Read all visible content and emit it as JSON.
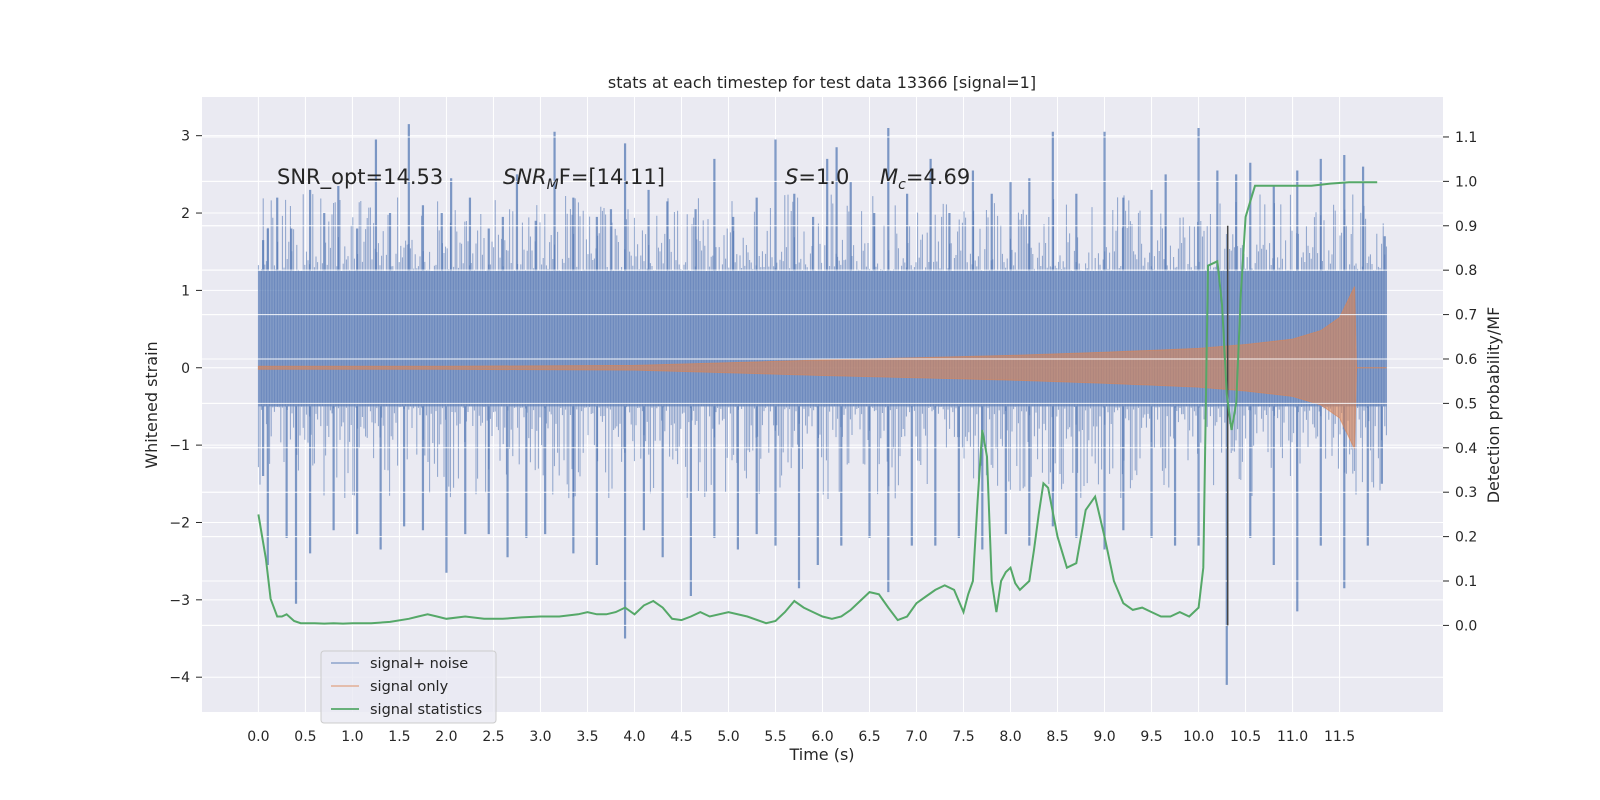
{
  "chart_data": {
    "type": "line",
    "title": "stats at each timestep for test data 13366 [signal=1]",
    "xlabel": "Time (s)",
    "ylabel_left": "Whitened strain",
    "ylabel_right": "Detection probability/MF",
    "xlim": [
      -0.6,
      12.6
    ],
    "ylim_left": [
      -4.45,
      3.5
    ],
    "ylim_right": [
      -0.195,
      1.19
    ],
    "grid": true,
    "x_ticks": [
      "0.0",
      "0.5",
      "1.0",
      "1.5",
      "2.0",
      "2.5",
      "3.0",
      "3.5",
      "4.0",
      "4.5",
      "5.0",
      "5.5",
      "6.0",
      "6.5",
      "7.0",
      "7.5",
      "8.0",
      "8.5",
      "9.0",
      "9.5",
      "10.0",
      "10.5",
      "11.0",
      "11.5"
    ],
    "y_left_ticks": [
      "3",
      "2",
      "1",
      "0",
      "−1",
      "−2",
      "−3",
      "−4"
    ],
    "y_right_ticks": [
      "1.1",
      "1.0",
      "0.9",
      "0.8",
      "0.7",
      "0.6",
      "0.5",
      "0.4",
      "0.3",
      "0.2",
      "0.1",
      "0.0"
    ],
    "annotations": {
      "snr_opt": "SNR_opt=14.53",
      "snr_mf_main": "SNR",
      "snr_mf_sub": "M",
      "snr_mf_rest": "F=[14.11]",
      "s_main": "S",
      "s_rest": "=1.0",
      "mc_main": "M",
      "mc_sub": "c",
      "mc_rest": "=4.69"
    },
    "marker_line_x": 10.31,
    "legend": {
      "placement": "lower-left",
      "entries": [
        "signal+ noise",
        "signal only",
        "signal statistics"
      ]
    },
    "series": [
      {
        "name": "signal+ noise",
        "color": "#4c72b0",
        "axis": "left",
        "band_core": [
          -0.5,
          1.25
        ],
        "x_range": [
          0.0,
          12.0
        ],
        "spikes_up": [
          [
            0.05,
            1.65
          ],
          [
            0.1,
            1.8
          ],
          [
            0.2,
            2.2
          ],
          [
            0.35,
            1.8
          ],
          [
            0.55,
            2.3
          ],
          [
            0.7,
            2.0
          ],
          [
            0.85,
            2.35
          ],
          [
            1.05,
            1.8
          ],
          [
            1.25,
            2.95
          ],
          [
            1.4,
            2.0
          ],
          [
            1.6,
            3.15
          ],
          [
            1.75,
            2.1
          ],
          [
            1.95,
            2.0
          ],
          [
            2.05,
            2.45
          ],
          [
            2.25,
            2.2
          ],
          [
            2.45,
            1.8
          ],
          [
            2.6,
            1.95
          ],
          [
            2.75,
            2.5
          ],
          [
            2.95,
            1.9
          ],
          [
            3.15,
            3.05
          ],
          [
            3.35,
            2.2
          ],
          [
            3.6,
            1.95
          ],
          [
            3.75,
            2.05
          ],
          [
            3.9,
            2.9
          ],
          [
            4.15,
            2.3
          ],
          [
            4.35,
            2.15
          ],
          [
            4.65,
            2.05
          ],
          [
            4.85,
            2.7
          ],
          [
            5.05,
            1.95
          ],
          [
            5.3,
            2.2
          ],
          [
            5.5,
            2.95
          ],
          [
            5.7,
            2.25
          ],
          [
            5.9,
            1.95
          ],
          [
            6.05,
            2.7
          ],
          [
            6.15,
            2.85
          ],
          [
            6.3,
            2.4
          ],
          [
            6.55,
            2.0
          ],
          [
            6.7,
            3.1
          ],
          [
            6.9,
            2.25
          ],
          [
            7.15,
            2.7
          ],
          [
            7.35,
            2.0
          ],
          [
            7.6,
            2.55
          ],
          [
            7.8,
            2.25
          ],
          [
            8.0,
            2.4
          ],
          [
            8.2,
            2.45
          ],
          [
            8.45,
            3.05
          ],
          [
            8.7,
            2.25
          ],
          [
            9.0,
            3.05
          ],
          [
            9.2,
            2.2
          ],
          [
            9.5,
            2.3
          ],
          [
            9.65,
            2.5
          ],
          [
            10.0,
            3.1
          ],
          [
            10.2,
            2.55
          ],
          [
            10.4,
            2.5
          ],
          [
            10.55,
            2.65
          ],
          [
            10.8,
            2.35
          ],
          [
            11.05,
            2.55
          ],
          [
            11.3,
            2.7
          ],
          [
            11.55,
            2.75
          ],
          [
            11.75,
            2.6
          ],
          [
            11.98,
            1.7
          ]
        ],
        "spikes_down": [
          [
            0.05,
            -1.4
          ],
          [
            0.1,
            -2.55
          ],
          [
            0.3,
            -2.2
          ],
          [
            0.4,
            -3.05
          ],
          [
            0.55,
            -2.4
          ],
          [
            0.8,
            -2.1
          ],
          [
            1.05,
            -2.15
          ],
          [
            1.3,
            -2.35
          ],
          [
            1.55,
            -2.05
          ],
          [
            1.75,
            -2.1
          ],
          [
            2.0,
            -2.65
          ],
          [
            2.2,
            -2.15
          ],
          [
            2.45,
            -2.15
          ],
          [
            2.65,
            -2.45
          ],
          [
            2.85,
            -2.2
          ],
          [
            3.05,
            -2.15
          ],
          [
            3.35,
            -2.4
          ],
          [
            3.6,
            -2.55
          ],
          [
            3.9,
            -3.5
          ],
          [
            4.1,
            -2.1
          ],
          [
            4.3,
            -2.45
          ],
          [
            4.6,
            -2.95
          ],
          [
            4.85,
            -2.2
          ],
          [
            5.1,
            -2.35
          ],
          [
            5.3,
            -2.15
          ],
          [
            5.5,
            -2.3
          ],
          [
            5.75,
            -2.85
          ],
          [
            5.95,
            -2.55
          ],
          [
            6.2,
            -2.3
          ],
          [
            6.5,
            -2.2
          ],
          [
            6.7,
            -2.9
          ],
          [
            6.95,
            -2.3
          ],
          [
            7.2,
            -2.3
          ],
          [
            7.45,
            -2.2
          ],
          [
            7.7,
            -2.35
          ],
          [
            7.95,
            -2.15
          ],
          [
            8.2,
            -2.3
          ],
          [
            8.45,
            -2.05
          ],
          [
            8.7,
            -2.2
          ],
          [
            9.0,
            -2.35
          ],
          [
            9.2,
            -2.1
          ],
          [
            9.5,
            -2.2
          ],
          [
            9.75,
            -2.3
          ],
          [
            10.0,
            -2.3
          ],
          [
            10.3,
            -4.1
          ],
          [
            10.55,
            -2.2
          ],
          [
            10.8,
            -2.55
          ],
          [
            11.05,
            -3.15
          ],
          [
            11.3,
            -2.3
          ],
          [
            11.55,
            -2.85
          ],
          [
            11.8,
            -2.3
          ],
          [
            11.95,
            -1.5
          ]
        ]
      },
      {
        "name": "signal only",
        "color": "#dd8452",
        "axis": "left",
        "envelope": [
          [
            0.0,
            0.02
          ],
          [
            2.0,
            0.02
          ],
          [
            4.0,
            0.03
          ],
          [
            6.0,
            0.1
          ],
          [
            7.0,
            0.13
          ],
          [
            8.0,
            0.16
          ],
          [
            9.0,
            0.2
          ],
          [
            10.0,
            0.25
          ],
          [
            10.5,
            0.3
          ],
          [
            11.0,
            0.37
          ],
          [
            11.3,
            0.48
          ],
          [
            11.5,
            0.65
          ],
          [
            11.6,
            0.9
          ],
          [
            11.66,
            1.05
          ]
        ],
        "merger_end": 11.68
      },
      {
        "name": "signal statistics",
        "color": "#55a868",
        "axis": "right",
        "x": [
          0.0,
          0.08,
          0.13,
          0.2,
          0.25,
          0.3,
          0.38,
          0.45,
          0.5,
          0.6,
          0.7,
          0.8,
          0.9,
          1.0,
          1.2,
          1.4,
          1.6,
          1.7,
          1.8,
          1.9,
          2.0,
          2.2,
          2.4,
          2.6,
          2.8,
          3.0,
          3.2,
          3.4,
          3.5,
          3.6,
          3.7,
          3.8,
          3.9,
          4.0,
          4.1,
          4.2,
          4.3,
          4.4,
          4.5,
          4.6,
          4.7,
          4.8,
          5.0,
          5.2,
          5.4,
          5.5,
          5.6,
          5.7,
          5.8,
          5.9,
          6.0,
          6.1,
          6.2,
          6.3,
          6.4,
          6.5,
          6.6,
          6.7,
          6.8,
          6.9,
          7.0,
          7.1,
          7.2,
          7.3,
          7.4,
          7.5,
          7.55,
          7.6,
          7.65,
          7.7,
          7.75,
          7.8,
          7.85,
          7.9,
          7.95,
          8.0,
          8.05,
          8.1,
          8.2,
          8.25,
          8.3,
          8.35,
          8.4,
          8.5,
          8.6,
          8.7,
          8.8,
          8.9,
          9.0,
          9.1,
          9.2,
          9.3,
          9.4,
          9.5,
          9.6,
          9.7,
          9.8,
          9.9,
          10.0,
          10.05,
          10.1,
          10.2,
          10.25,
          10.3,
          10.35,
          10.4,
          10.45,
          10.5,
          10.6,
          10.7,
          10.8,
          11.0,
          11.2,
          11.4,
          11.6,
          11.8,
          11.9
        ],
        "values": [
          0.25,
          0.15,
          0.06,
          0.02,
          0.02,
          0.025,
          0.01,
          0.005,
          0.005,
          0.005,
          0.004,
          0.005,
          0.004,
          0.005,
          0.005,
          0.008,
          0.015,
          0.02,
          0.025,
          0.02,
          0.015,
          0.02,
          0.015,
          0.015,
          0.018,
          0.02,
          0.02,
          0.025,
          0.03,
          0.025,
          0.025,
          0.03,
          0.04,
          0.025,
          0.045,
          0.055,
          0.04,
          0.015,
          0.012,
          0.02,
          0.03,
          0.02,
          0.03,
          0.02,
          0.005,
          0.01,
          0.03,
          0.055,
          0.04,
          0.03,
          0.02,
          0.015,
          0.02,
          0.035,
          0.055,
          0.075,
          0.07,
          0.04,
          0.012,
          0.02,
          0.05,
          0.065,
          0.08,
          0.09,
          0.08,
          0.03,
          0.07,
          0.1,
          0.28,
          0.44,
          0.38,
          0.1,
          0.03,
          0.1,
          0.12,
          0.13,
          0.095,
          0.08,
          0.1,
          0.17,
          0.25,
          0.32,
          0.31,
          0.2,
          0.13,
          0.14,
          0.26,
          0.29,
          0.2,
          0.1,
          0.05,
          0.035,
          0.04,
          0.03,
          0.02,
          0.02,
          0.03,
          0.02,
          0.04,
          0.13,
          0.81,
          0.82,
          0.72,
          0.52,
          0.44,
          0.5,
          0.75,
          0.92,
          0.99,
          0.99,
          0.99,
          0.99,
          0.99,
          0.995,
          0.998,
          0.998,
          0.998
        ]
      }
    ]
  }
}
